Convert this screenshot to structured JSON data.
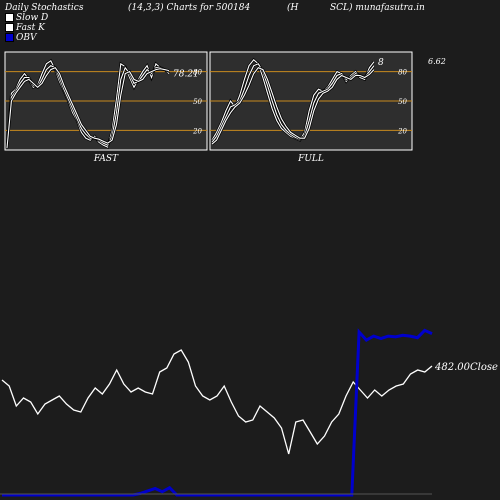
{
  "header": {
    "title": "Daily Stochastics",
    "params": "(14,3,3) Charts for 500184",
    "symbol_part": "(H",
    "site_part": "SCL) munafasutra.in"
  },
  "legend": [
    {
      "label": "Slow  D",
      "color": "#ffffff"
    },
    {
      "label": "Fast K",
      "color": "#ffffff"
    },
    {
      "label": "OBV",
      "color": "#0000cc"
    }
  ],
  "colors": {
    "background": "#1c1c1c",
    "panel": "#2e2e2e",
    "reference_line": "#c88a1e",
    "line": "#ffffff",
    "obv": "#0000cc"
  },
  "chart_data": [
    {
      "type": "line",
      "name_label": "FAST",
      "ylim": [
        0,
        100
      ],
      "yticks": [
        80,
        50,
        20
      ],
      "reference_lines": [
        80,
        50,
        20
      ],
      "last_value_label": "78.21",
      "series": [
        {
          "values": [
            2,
            58,
            62,
            72,
            78,
            72,
            64,
            66,
            78,
            88,
            91,
            82,
            70,
            60,
            50,
            38,
            30,
            18,
            12,
            10,
            14,
            8,
            5,
            3,
            20,
            52,
            88,
            85,
            74,
            64,
            72,
            80,
            86,
            74,
            88,
            84,
            82,
            78
          ]
        },
        {
          "values": [
            2,
            54,
            60,
            68,
            74,
            74,
            66,
            64,
            72,
            82,
            86,
            84,
            74,
            62,
            52,
            42,
            32,
            22,
            16,
            12,
            12,
            10,
            7,
            5,
            14,
            38,
            72,
            84,
            78,
            68,
            70,
            76,
            82,
            78,
            84,
            84,
            82,
            80
          ]
        },
        {
          "values": [
            2,
            50,
            58,
            64,
            70,
            72,
            68,
            64,
            68,
            76,
            82,
            84,
            78,
            66,
            56,
            46,
            36,
            26,
            20,
            14,
            12,
            11,
            9,
            7,
            10,
            26,
            56,
            78,
            80,
            72,
            70,
            72,
            78,
            80,
            82,
            83,
            82,
            81
          ]
        }
      ]
    },
    {
      "type": "line",
      "name_label": "FULL",
      "ylim": [
        0,
        100
      ],
      "yticks": [
        80,
        50,
        20
      ],
      "reference_lines": [
        80,
        50,
        20
      ],
      "last_value_label": "8",
      "side_value_label": "6.62",
      "series": [
        {
          "values": [
            10,
            18,
            28,
            40,
            50,
            44,
            56,
            72,
            86,
            92,
            88,
            74,
            58,
            42,
            30,
            22,
            18,
            14,
            12,
            10,
            18,
            40,
            56,
            62,
            60,
            64,
            72,
            80,
            78,
            70,
            76,
            80,
            74,
            72,
            84,
            90
          ]
        },
        {
          "values": [
            8,
            14,
            24,
            34,
            44,
            46,
            50,
            62,
            76,
            86,
            88,
            80,
            66,
            50,
            36,
            26,
            20,
            16,
            13,
            11,
            14,
            30,
            48,
            58,
            60,
            62,
            68,
            76,
            78,
            72,
            74,
            78,
            76,
            74,
            80,
            86
          ]
        },
        {
          "values": [
            6,
            10,
            20,
            30,
            38,
            44,
            48,
            56,
            66,
            78,
            84,
            82,
            72,
            58,
            44,
            32,
            24,
            18,
            15,
            12,
            12,
            22,
            40,
            52,
            58,
            60,
            64,
            72,
            76,
            74,
            72,
            76,
            76,
            74,
            77,
            82
          ]
        }
      ]
    },
    {
      "type": "line",
      "title": "",
      "last_value_label": "482.00",
      "last_value_suffix": "Close",
      "series": [
        {
          "label": "Price",
          "values": [
            475,
            472,
            462,
            466,
            464,
            458,
            463,
            465,
            467,
            463,
            460,
            459,
            466,
            471,
            468,
            473,
            480,
            473,
            469,
            471,
            469,
            468,
            479,
            481,
            488,
            490,
            484,
            472,
            467,
            465,
            467,
            472,
            464,
            457,
            454,
            455,
            462,
            459,
            456,
            451,
            438,
            454,
            455,
            449,
            443,
            447,
            454,
            458,
            467,
            474,
            470,
            466,
            470,
            467,
            470,
            472,
            473,
            478,
            480,
            479,
            482
          ]
        },
        {
          "label": "OBV",
          "values": [
            0,
            0,
            0,
            0,
            0,
            0,
            0,
            0,
            0,
            0,
            0,
            0,
            0,
            0,
            0,
            0,
            0,
            0,
            0,
            2,
            5,
            8,
            4,
            9,
            0,
            0,
            0,
            0,
            0,
            0,
            0,
            0,
            0,
            0,
            0,
            0,
            0,
            0,
            0,
            0,
            0,
            0,
            0,
            0,
            0,
            0,
            0,
            0,
            0,
            200,
            190,
            195,
            192,
            195,
            194,
            196,
            195,
            193,
            202,
            198
          ]
        }
      ]
    }
  ]
}
